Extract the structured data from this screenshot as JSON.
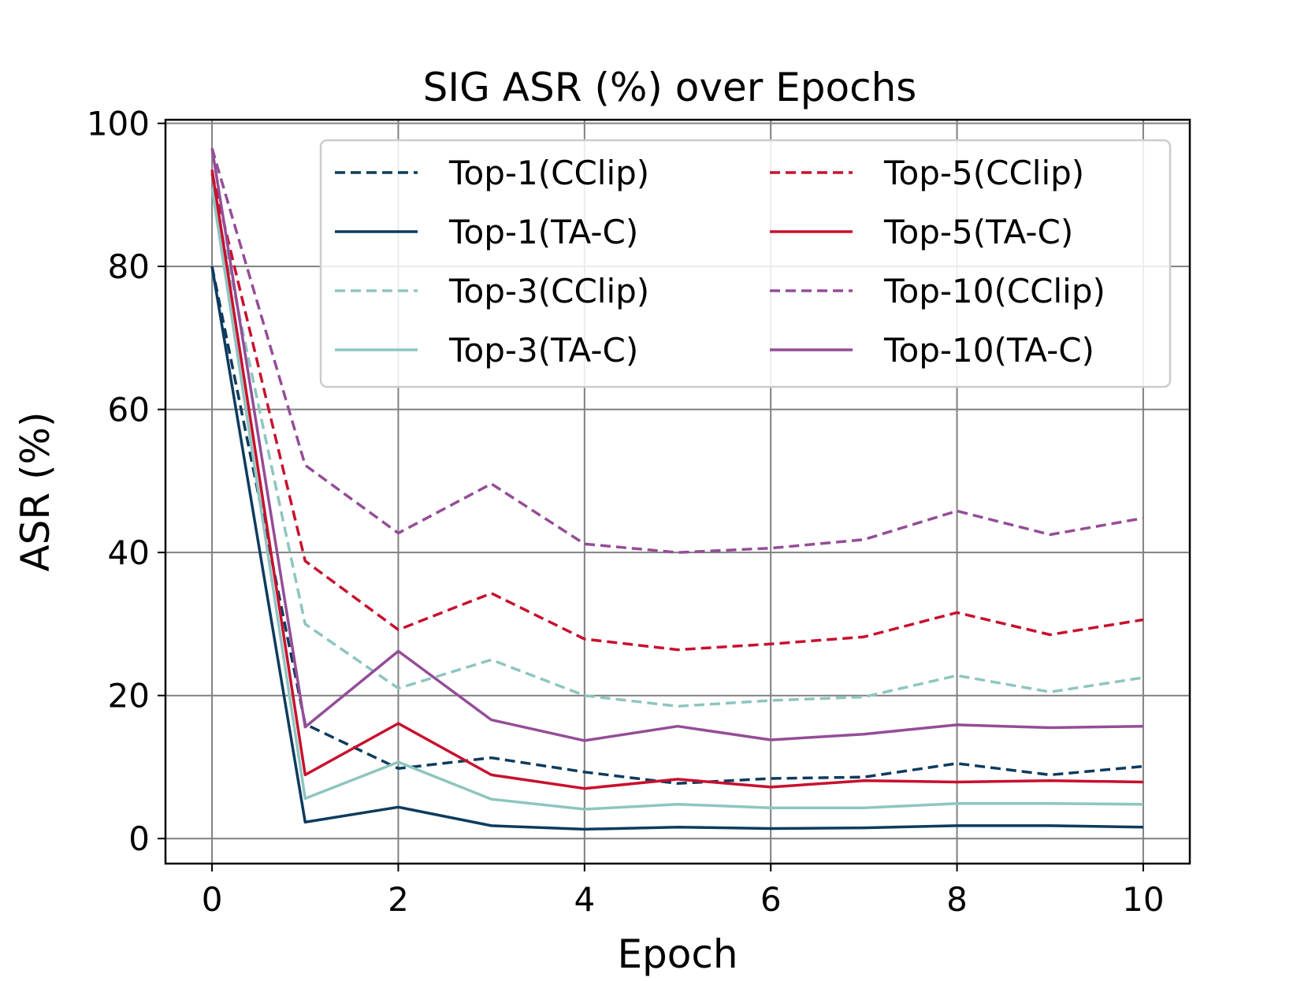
{
  "chart_data": {
    "type": "line",
    "title": "SIG ASR (%) over Epochs",
    "xlabel": "Epoch",
    "ylabel": "ASR (%)",
    "xlim": [
      -0.5,
      10.5
    ],
    "ylim": [
      -3.5,
      100.5
    ],
    "xticks": [
      0,
      2,
      4,
      6,
      8,
      10
    ],
    "yticks": [
      0,
      20,
      40,
      60,
      80,
      100
    ],
    "grid": true,
    "legend_position": "top-right",
    "x": [
      0,
      1,
      2,
      3,
      4,
      5,
      6,
      7,
      8,
      9,
      10
    ],
    "series": [
      {
        "name": "Top-1(CClip)",
        "color": "#0d3b5e",
        "style": "dashed",
        "values": [
          80,
          16,
          9.8,
          11.3,
          9.3,
          7.7,
          8.4,
          8.6,
          10.5,
          8.9,
          10.1
        ]
      },
      {
        "name": "Top-1(TA-C)",
        "color": "#0d3b5e",
        "style": "solid",
        "values": [
          80,
          2.3,
          4.4,
          1.8,
          1.3,
          1.6,
          1.4,
          1.5,
          1.8,
          1.8,
          1.6
        ]
      },
      {
        "name": "Top-3(CClip)",
        "color": "#8ec5bf",
        "style": "dashed",
        "values": [
          91,
          30,
          21,
          25,
          20,
          18.5,
          19.3,
          19.8,
          22.8,
          20.5,
          22.5
        ]
      },
      {
        "name": "Top-3(TA-C)",
        "color": "#8ec5bf",
        "style": "solid",
        "values": [
          91,
          5.6,
          10.7,
          5.5,
          4.1,
          4.8,
          4.3,
          4.3,
          4.9,
          4.9,
          4.8
        ]
      },
      {
        "name": "Top-5(CClip)",
        "color": "#c8102e",
        "style": "dashed",
        "values": [
          93,
          38.8,
          29.2,
          34.3,
          27.9,
          26.4,
          27.2,
          28.2,
          31.6,
          28.5,
          30.6
        ]
      },
      {
        "name": "Top-5(TA-C)",
        "color": "#c8102e",
        "style": "solid",
        "values": [
          93.5,
          8.9,
          16.1,
          8.9,
          7.0,
          8.3,
          7.2,
          8.1,
          7.9,
          8.1,
          7.9
        ]
      },
      {
        "name": "Top-10(CClip)",
        "color": "#944d97",
        "style": "dashed",
        "values": [
          96.5,
          52.2,
          42.7,
          49.6,
          41.2,
          40.0,
          40.6,
          41.8,
          45.8,
          42.5,
          44.8
        ]
      },
      {
        "name": "Top-10(TA-C)",
        "color": "#944d97",
        "style": "solid",
        "values": [
          96.5,
          15.6,
          26.2,
          16.6,
          13.7,
          15.7,
          13.8,
          14.6,
          15.9,
          15.5,
          15.7
        ]
      }
    ]
  }
}
